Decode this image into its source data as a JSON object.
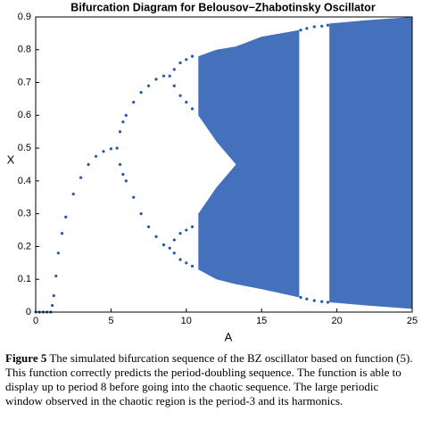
{
  "chart_data": {
    "type": "scatter",
    "title": "Bifurcation Diagram for Belousov−Zhabotinsky Oscillator",
    "x_label": "A",
    "y_label": "X",
    "xlim": [
      0,
      25
    ],
    "xticks": [
      0,
      5,
      10,
      15,
      20,
      25
    ],
    "ylim": [
      0,
      0.9
    ],
    "yticks": [
      0,
      0.1,
      0.2,
      0.3,
      0.4,
      0.5,
      0.6,
      0.7,
      0.8,
      0.9
    ],
    "color": "#2457b0",
    "series": [
      {
        "x": [
          0,
          0.25,
          0.5,
          0.75,
          1,
          1.1,
          1.2,
          1.35,
          1.5,
          1.75,
          2,
          2.5,
          3,
          3.5,
          4,
          4.5,
          5,
          5.4,
          5.6,
          5.8,
          6,
          6.5,
          7,
          7.5,
          8,
          8.5,
          8.9,
          5.6,
          5.8,
          6,
          6.5,
          7,
          7.5,
          8,
          8.5,
          8.9,
          9.2,
          9.6,
          10,
          10.4,
          9.2,
          9.6,
          10,
          10.4,
          9.2,
          9.6,
          10,
          10.4,
          9.2,
          9.6,
          10,
          10.4,
          17.6,
          18,
          18.5,
          19,
          19.4,
          17.6,
          18,
          18.5,
          19,
          19.4
        ],
        "y": [
          0,
          0,
          0,
          0,
          0,
          0.02,
          0.05,
          0.11,
          0.18,
          0.24,
          0.29,
          0.36,
          0.41,
          0.45,
          0.475,
          0.49,
          0.498,
          0.5,
          0.55,
          0.58,
          0.6,
          0.64,
          0.67,
          0.69,
          0.71,
          0.72,
          0.72,
          0.45,
          0.42,
          0.4,
          0.35,
          0.3,
          0.26,
          0.23,
          0.205,
          0.195,
          0.74,
          0.76,
          0.77,
          0.78,
          0.69,
          0.66,
          0.64,
          0.62,
          0.22,
          0.24,
          0.25,
          0.26,
          0.18,
          0.16,
          0.15,
          0.14,
          0.86,
          0.865,
          0.87,
          0.872,
          0.875,
          0.045,
          0.04,
          0.035,
          0.032,
          0.03
        ]
      }
    ],
    "bands": [
      {
        "x": [
          10.8,
          12,
          13.3
        ],
        "lower": [
          0.6,
          0.52,
          0.45
        ],
        "upper": [
          0.78,
          0.8,
          0.81
        ]
      },
      {
        "x": [
          10.8,
          12,
          13.3
        ],
        "lower": [
          0.13,
          0.1,
          0.085
        ],
        "upper": [
          0.3,
          0.38,
          0.45
        ]
      },
      {
        "x": [
          13.3,
          15,
          17.5
        ],
        "lower": [
          0.085,
          0.07,
          0.045
        ],
        "upper": [
          0.81,
          0.84,
          0.86
        ]
      },
      {
        "x": [
          19.5,
          22,
          25
        ],
        "lower": [
          0.03,
          0.02,
          0.01
        ],
        "upper": [
          0.88,
          0.89,
          0.9
        ]
      }
    ]
  },
  "caption": {
    "label": "Figure 5",
    "text": "The simulated bifurcation sequence of the BZ oscillator based on function (5). This function correctly predicts the period-doubling sequence. The function is able to display up to period 8 before going into the chaotic sequence. The large periodic window observed in the chaotic region is the period-3 and its harmonics."
  }
}
